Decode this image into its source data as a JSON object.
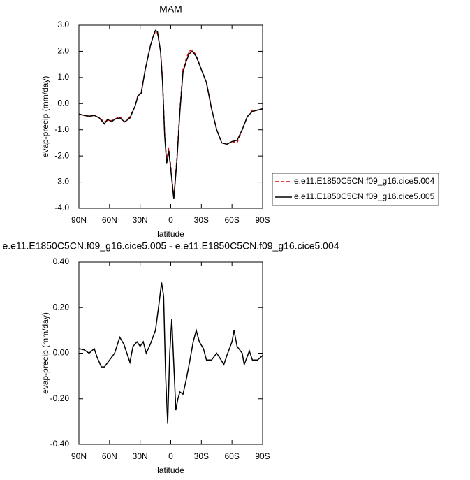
{
  "chart_data": [
    {
      "type": "line",
      "title": "MAM",
      "xlabel": "latitude",
      "ylabel": "evap-precip (mm/day)",
      "x": [
        90,
        85,
        80,
        75,
        70,
        65,
        62,
        58,
        55,
        50,
        45,
        40,
        35,
        32,
        29,
        25,
        20,
        17,
        15,
        13,
        10,
        8,
        6,
        4,
        2,
        0,
        -3,
        -6,
        -9,
        -12,
        -15,
        -18,
        -21,
        -25,
        -30,
        -35,
        -40,
        -45,
        -50,
        -55,
        -60,
        -65,
        -70,
        -75,
        -80,
        -85,
        -90
      ],
      "series": [
        {
          "name": "e.e11.E1850C5CN.f09_g16.cice5.004",
          "color": "#e00000",
          "line_style": "dashed",
          "values": [
            -0.4,
            -0.45,
            -0.5,
            -0.45,
            -0.55,
            -0.7,
            -0.65,
            -0.65,
            -0.6,
            -0.5,
            -0.7,
            -0.5,
            -0.1,
            0.35,
            0.4,
            1.3,
            2.2,
            2.6,
            2.75,
            2.7,
            2.0,
            0.9,
            -1.1,
            -2.2,
            -1.7,
            -2.4,
            -3.6,
            -2.1,
            -0.2,
            1.3,
            1.7,
            2.0,
            2.05,
            1.85,
            1.3,
            0.8,
            -0.2,
            -1.0,
            -1.5,
            -1.55,
            -1.45,
            -1.5,
            -1.0,
            -0.5,
            -0.25,
            -0.25,
            -0.2
          ]
        },
        {
          "name": "e.e11.E1850C5CN.f09_g16.cice5.005",
          "color": "#000000",
          "line_style": "solid",
          "values": [
            -0.4,
            -0.45,
            -0.48,
            -0.45,
            -0.55,
            -0.78,
            -0.6,
            -0.7,
            -0.6,
            -0.55,
            -0.7,
            -0.55,
            -0.1,
            0.3,
            0.4,
            1.3,
            2.2,
            2.6,
            2.8,
            2.75,
            2.0,
            0.8,
            -1.2,
            -2.3,
            -1.8,
            -2.5,
            -3.65,
            -2.2,
            -0.3,
            1.2,
            1.6,
            1.9,
            2.0,
            1.8,
            1.3,
            0.8,
            -0.2,
            -1.0,
            -1.5,
            -1.55,
            -1.45,
            -1.4,
            -1.0,
            -0.5,
            -0.3,
            -0.25,
            -0.2
          ]
        }
      ],
      "xlim": [
        90,
        -90
      ],
      "xticks": [
        {
          "value": 90,
          "label": "90N"
        },
        {
          "value": 60,
          "label": "60N"
        },
        {
          "value": 30,
          "label": "30N"
        },
        0,
        {
          "value": -30,
          "label": "30S"
        },
        {
          "value": -60,
          "label": "60S"
        },
        {
          "value": -90,
          "label": "90S"
        }
      ],
      "ylim": [
        -4,
        3
      ],
      "yticks": [
        {
          "value": 3,
          "label": "3.0"
        },
        {
          "value": 2,
          "label": "2.0"
        },
        {
          "value": 1,
          "label": "1.0"
        },
        {
          "value": 0,
          "label": "0.0"
        },
        {
          "value": -1,
          "label": "-1.0"
        },
        {
          "value": -2,
          "label": "-2.0"
        },
        {
          "value": -3,
          "label": "-3.0"
        },
        {
          "value": -4,
          "label": "-4.0"
        }
      ],
      "legend": "right"
    },
    {
      "type": "line",
      "title": "e.e11.E1850C5CN.f09_g16.cice5.005 - e.e11.E1850C5CN.f09_g16.cice5.004",
      "xlabel": "latitude",
      "ylabel": "evap-precip (mm/day)",
      "x": [
        90,
        85,
        80,
        75,
        72,
        68,
        65,
        60,
        55,
        50,
        46,
        43,
        40,
        37,
        33,
        30,
        27,
        24,
        20,
        15,
        12,
        9,
        7,
        5,
        3,
        1,
        -1,
        -3,
        -5,
        -7,
        -9,
        -12,
        -15,
        -18,
        -22,
        -25,
        -28,
        -32,
        -35,
        -40,
        -45,
        -48,
        -52,
        -55,
        -60,
        -62,
        -65,
        -70,
        -72,
        -77,
        -80,
        -85,
        -90
      ],
      "series": [
        {
          "color": "#000000",
          "line_style": "solid",
          "values": [
            0.02,
            0.015,
            0.0,
            0.02,
            -0.02,
            -0.06,
            -0.06,
            -0.03,
            0.0,
            0.07,
            0.04,
            0.0,
            -0.04,
            0.03,
            0.05,
            0.03,
            0.05,
            0.0,
            0.04,
            0.1,
            0.2,
            0.31,
            0.25,
            -0.1,
            -0.31,
            0.0,
            0.15,
            -0.05,
            -0.25,
            -0.2,
            -0.17,
            -0.18,
            -0.12,
            -0.05,
            0.05,
            0.1,
            0.05,
            0.02,
            -0.03,
            -0.03,
            0.0,
            -0.02,
            -0.05,
            -0.01,
            0.05,
            0.1,
            0.03,
            0.0,
            -0.05,
            0.01,
            -0.03,
            -0.03,
            -0.01
          ]
        }
      ],
      "xlim": [
        90,
        -90
      ],
      "xticks": [
        {
          "value": 90,
          "label": "90N"
        },
        {
          "value": 60,
          "label": "60N"
        },
        {
          "value": 30,
          "label": "30N"
        },
        0,
        {
          "value": -30,
          "label": "30S"
        },
        {
          "value": -60,
          "label": "60S"
        },
        {
          "value": -90,
          "label": "90S"
        }
      ],
      "ylim": [
        -0.4,
        0.4
      ],
      "yticks": [
        {
          "value": 0.4,
          "label": "0.40"
        },
        {
          "value": 0.2,
          "label": "0.20"
        },
        {
          "value": 0,
          "label": "0.00"
        },
        {
          "value": -0.2,
          "label": "-0.20"
        },
        {
          "value": -0.4,
          "label": "-0.40"
        }
      ]
    }
  ]
}
